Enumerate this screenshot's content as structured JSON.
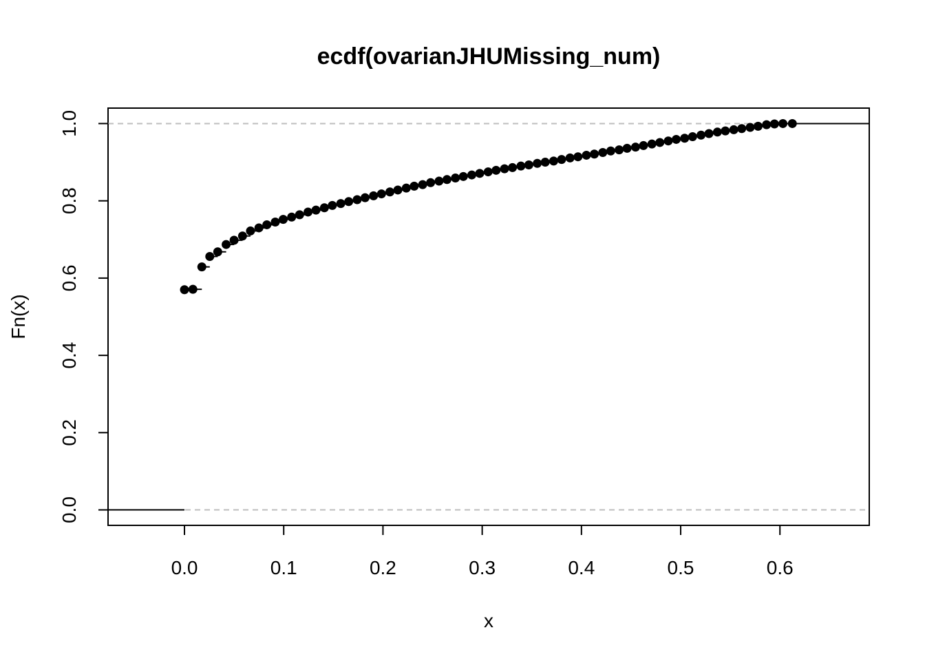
{
  "chart_data": {
    "type": "scatter",
    "subtype": "ecdf-step",
    "title": "ecdf(ovarianJHUMissing_num)",
    "xlabel": "x",
    "ylabel": "Fn(x)",
    "xlim": [
      -0.077,
      0.69
    ],
    "ylim": [
      -0.04,
      1.04
    ],
    "xticks": [
      "0.0",
      "0.1",
      "0.2",
      "0.3",
      "0.4",
      "0.5",
      "0.6"
    ],
    "yticks": [
      "0.0",
      "0.2",
      "0.4",
      "0.6",
      "0.8",
      "1.0"
    ],
    "reference_lines": [
      0,
      1
    ],
    "grid": false,
    "legend": "none",
    "point_color": "#000000",
    "reference_line_color": "#bebebe",
    "points": [
      [
        0.0,
        0.57
      ],
      [
        0.0085,
        0.571
      ],
      [
        0.0175,
        0.629
      ],
      [
        0.0255,
        0.656
      ],
      [
        0.0335,
        0.668
      ],
      [
        0.042,
        0.687
      ],
      [
        0.05,
        0.698
      ],
      [
        0.0585,
        0.709
      ],
      [
        0.0665,
        0.722
      ],
      [
        0.075,
        0.73
      ],
      [
        0.083,
        0.738
      ],
      [
        0.0915,
        0.745
      ],
      [
        0.0995,
        0.752
      ],
      [
        0.108,
        0.758
      ],
      [
        0.116,
        0.764
      ],
      [
        0.1245,
        0.771
      ],
      [
        0.1325,
        0.776
      ],
      [
        0.141,
        0.782
      ],
      [
        0.149,
        0.788
      ],
      [
        0.1575,
        0.793
      ],
      [
        0.1655,
        0.798
      ],
      [
        0.174,
        0.803
      ],
      [
        0.182,
        0.808
      ],
      [
        0.1905,
        0.813
      ],
      [
        0.1985,
        0.818
      ],
      [
        0.207,
        0.823
      ],
      [
        0.215,
        0.828
      ],
      [
        0.2235,
        0.833
      ],
      [
        0.2315,
        0.838
      ],
      [
        0.24,
        0.842
      ],
      [
        0.248,
        0.847
      ],
      [
        0.2565,
        0.851
      ],
      [
        0.2645,
        0.855
      ],
      [
        0.273,
        0.859
      ],
      [
        0.281,
        0.863
      ],
      [
        0.2895,
        0.867
      ],
      [
        0.2975,
        0.871
      ],
      [
        0.306,
        0.875
      ],
      [
        0.314,
        0.879
      ],
      [
        0.3225,
        0.883
      ],
      [
        0.3305,
        0.886
      ],
      [
        0.339,
        0.89
      ],
      [
        0.347,
        0.893
      ],
      [
        0.3555,
        0.897
      ],
      [
        0.3635,
        0.9
      ],
      [
        0.372,
        0.903
      ],
      [
        0.38,
        0.907
      ],
      [
        0.3885,
        0.911
      ],
      [
        0.3965,
        0.914
      ],
      [
        0.405,
        0.918
      ],
      [
        0.413,
        0.921
      ],
      [
        0.4215,
        0.925
      ],
      [
        0.4295,
        0.929
      ],
      [
        0.438,
        0.932
      ],
      [
        0.446,
        0.936
      ],
      [
        0.4545,
        0.939
      ],
      [
        0.4625,
        0.943
      ],
      [
        0.471,
        0.947
      ],
      [
        0.479,
        0.951
      ],
      [
        0.4875,
        0.955
      ],
      [
        0.4955,
        0.959
      ],
      [
        0.504,
        0.962
      ],
      [
        0.512,
        0.966
      ],
      [
        0.5205,
        0.97
      ],
      [
        0.5285,
        0.974
      ],
      [
        0.537,
        0.978
      ],
      [
        0.545,
        0.981
      ],
      [
        0.5535,
        0.984
      ],
      [
        0.5615,
        0.987
      ],
      [
        0.57,
        0.99
      ],
      [
        0.578,
        0.993
      ],
      [
        0.5865,
        0.997
      ],
      [
        0.5945,
        0.999
      ],
      [
        0.603,
        1.0
      ],
      [
        0.6125,
        1.0
      ]
    ]
  }
}
